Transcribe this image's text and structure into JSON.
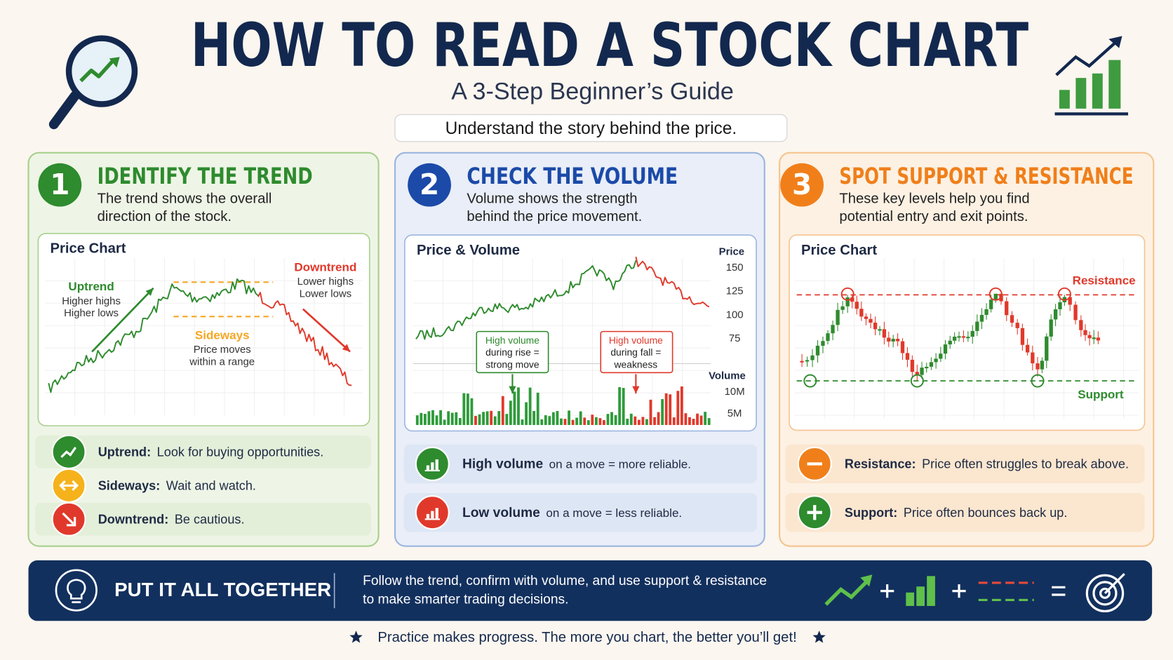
{
  "header": {
    "title": "HOW TO READ A STOCK CHART",
    "subtitle": "A 3-Step Beginner’s Guide",
    "tagline": "Understand the story behind the price."
  },
  "steps": [
    {
      "number": "1",
      "title": "IDENTIFY THE TREND",
      "description": [
        "The trend shows the overall",
        "direction of the stock."
      ],
      "chart": {
        "title": "Price Chart",
        "uptrend": [
          "Uptrend",
          "Higher highs",
          "Higher lows"
        ],
        "sideways": [
          "Sideways",
          "Price moves",
          "within a range"
        ],
        "downtrend": [
          "Downtrend",
          "Lower highs",
          "Lower lows"
        ]
      },
      "tips": [
        {
          "label": "Uptrend:",
          "text": "Look for buying opportunities."
        },
        {
          "label": "Sideways:",
          "text": "Wait and watch."
        },
        {
          "label": "Downtrend:",
          "text": "Be cautious."
        }
      ]
    },
    {
      "number": "2",
      "title": "CHECK THE VOLUME",
      "description": [
        "Volume shows the strength",
        "behind the price movement."
      ],
      "chart": {
        "title": "Price & Volume",
        "price_label": "Price",
        "price_ticks": [
          150,
          125,
          100,
          75
        ],
        "volume_label": "Volume",
        "volume_ticks": [
          "10M",
          "5M"
        ],
        "callout_rise": [
          "High volume",
          "during rise =",
          "strong move"
        ],
        "callout_fall": [
          "High volume",
          "during fall =",
          "weakness"
        ]
      },
      "tips": [
        {
          "label": "High volume",
          "text": "on a move = more reliable."
        },
        {
          "label": "Low volume",
          "text": "on a move = less reliable."
        }
      ]
    },
    {
      "number": "3",
      "title": "SPOT SUPPORT & RESISTANCE",
      "description": [
        "These key levels help you find",
        "potential entry and exit points."
      ],
      "chart": {
        "title": "Price Chart",
        "resistance": "Resistance",
        "support": "Support"
      },
      "tips": [
        {
          "label": "Resistance:",
          "text": "Price often struggles to break above."
        },
        {
          "label": "Support:",
          "text": "Price often bounces back up."
        }
      ]
    }
  ],
  "summary": {
    "title": "PUT IT ALL TOGETHER",
    "text": [
      "Follow the trend, confirm with volume, and use support & resistance",
      "to make smarter trading decisions."
    ]
  },
  "footer": "Practice makes progress.  The more you chart, the better you’ll get!"
}
